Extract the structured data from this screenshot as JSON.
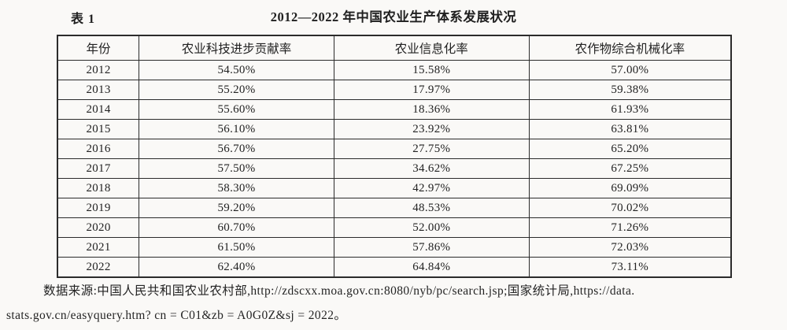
{
  "header": {
    "table_label": "表 1",
    "title": "2012—2022 年中国农业生产体系发展状况"
  },
  "table": {
    "columns": [
      "年份",
      "农业科技进步贡献率",
      "农业信息化率",
      "农作物综合机械化率"
    ],
    "rows": [
      [
        "2012",
        "54.50%",
        "15.58%",
        "57.00%"
      ],
      [
        "2013",
        "55.20%",
        "17.97%",
        "59.38%"
      ],
      [
        "2014",
        "55.60%",
        "18.36%",
        "61.93%"
      ],
      [
        "2015",
        "56.10%",
        "23.92%",
        "63.81%"
      ],
      [
        "2016",
        "56.70%",
        "27.75%",
        "65.20%"
      ],
      [
        "2017",
        "57.50%",
        "34.62%",
        "67.25%"
      ],
      [
        "2018",
        "58.30%",
        "42.97%",
        "69.09%"
      ],
      [
        "2019",
        "59.20%",
        "48.53%",
        "70.02%"
      ],
      [
        "2020",
        "60.70%",
        "52.00%",
        "71.26%"
      ],
      [
        "2021",
        "61.50%",
        "57.86%",
        "72.03%"
      ],
      [
        "2022",
        "62.40%",
        "64.84%",
        "73.11%"
      ]
    ]
  },
  "source": {
    "line1": "数据来源:中国人民共和国农业农村部,http://zdscxx.moa.gov.cn:8080/nyb/pc/search.jsp;国家统计局,https://data.",
    "line2": "stats.gov.cn/easyquery.htm? cn = C01&zb = A0G0Z&sj = 2022。"
  },
  "chart_data": {
    "type": "table",
    "title": "2012—2022 年中国农业生产体系发展状况",
    "categories": [
      2012,
      2013,
      2014,
      2015,
      2016,
      2017,
      2018,
      2019,
      2020,
      2021,
      2022
    ],
    "series": [
      {
        "name": "农业科技进步贡献率",
        "values": [
          54.5,
          55.2,
          55.6,
          56.1,
          56.7,
          57.5,
          58.3,
          59.2,
          60.7,
          61.5,
          62.4
        ]
      },
      {
        "name": "农业信息化率",
        "values": [
          15.58,
          17.97,
          18.36,
          23.92,
          27.75,
          34.62,
          42.97,
          48.53,
          52.0,
          57.86,
          64.84
        ]
      },
      {
        "name": "农作物综合机械化率",
        "values": [
          57.0,
          59.38,
          61.93,
          63.81,
          65.2,
          67.25,
          69.09,
          70.02,
          71.26,
          72.03,
          73.11
        ]
      }
    ],
    "unit": "%"
  }
}
